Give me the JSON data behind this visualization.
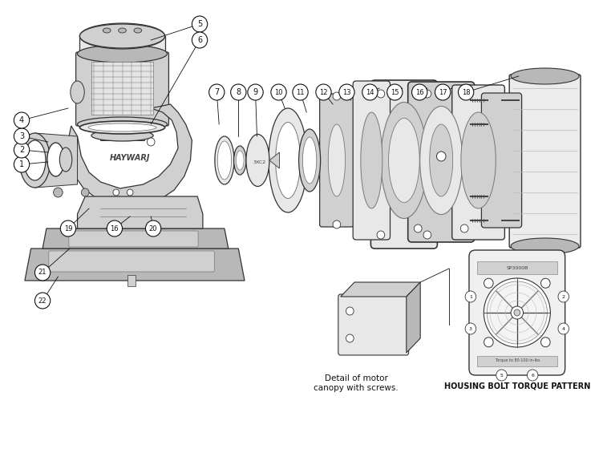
{
  "background_color": "#ffffff",
  "line_color": "#333333",
  "mid_gray": "#777777",
  "light_gray": "#bbbbbb",
  "dark_gray": "#444444",
  "fill_light": "#e8e8e8",
  "fill_mid": "#d0d0d0",
  "fill_dark": "#b8b8b8",
  "text_color": "#111111",
  "bottom_text1": "Detail of motor",
  "bottom_text2": "canopy with screws.",
  "bottom_text3": "HOUSING BOLT TORQUE PATTERN",
  "figsize": [
    7.52,
    5.85
  ],
  "dpi": 100,
  "xlim": [
    0,
    752
  ],
  "ylim": [
    0,
    585
  ]
}
